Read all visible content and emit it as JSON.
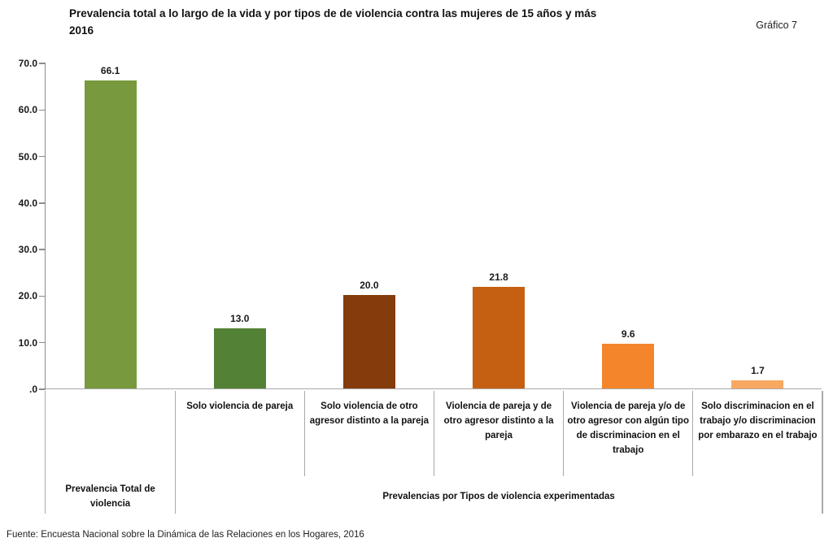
{
  "header": {
    "title_line1": "Prevalencia  total a lo largo de la vida y por tipos de de violencia contra las mujeres de 15 años y más",
    "title_line2": "2016",
    "corner_label": "Gráfico 7"
  },
  "chart_data": {
    "type": "bar",
    "title": "Prevalencia total a lo largo de la vida y por tipos de de violencia contra las mujeres de 15 años y más 2016",
    "categories": [
      "",
      "Solo violencia de pareja",
      "Solo violencia de otro agresor distinto a la pareja",
      "Violencia de pareja y de otro agresor distinto a la pareja",
      "Violencia de pareja y/o de otro agresor  con algún tipo de discriminacion en el trabajo",
      "Solo discriminacion en el trabajo y/o discriminacion por embarazo en el trabajo"
    ],
    "values": [
      66.1,
      13.0,
      20.0,
      21.8,
      9.6,
      1.7
    ],
    "value_labels": [
      "66.1",
      "13.0",
      "20.0",
      "21.8",
      "9.6",
      "1.7"
    ],
    "bar_colors": [
      "#78993D",
      "#538135",
      "#843C0C",
      "#C55F11",
      "#F5852A",
      "#F9A861"
    ],
    "y_ticks": [
      "70.0",
      "60.0",
      "50.0",
      "40.0",
      "30.0",
      "20.0",
      "10.0",
      ".0"
    ],
    "ylim": [
      0,
      70
    ],
    "group_labels": [
      "Prevalencia Total de violencia",
      "Prevalencias por Tipos de violencia experimentadas"
    ],
    "xlabel": "",
    "ylabel": "",
    "grid": false,
    "legend": false,
    "axis_color": "#8c8c8c",
    "divider_color": "#a9a9a9"
  },
  "footer": {
    "source": "Fuente: Encuesta Nacional sobre la Dinámica de las Relaciones en los Hogares, 2016"
  }
}
